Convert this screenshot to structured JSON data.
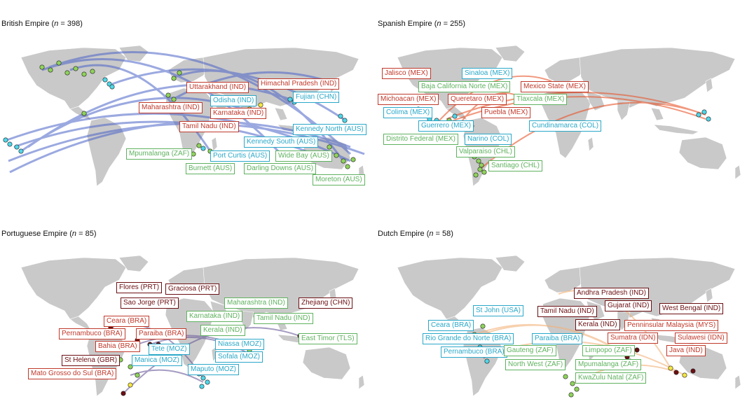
{
  "colors": {
    "land": "#c9c9c9",
    "border": "#ffffff",
    "red": "#c0392b",
    "dark_red": "#6b0f12",
    "blue": "#2aa8c8",
    "green": "#5fb25f",
    "british_route": "#4a63c8",
    "spanish_route": "#e8542a",
    "portuguese_route": "#6a5a9a",
    "dutch_route": "#f2b27a",
    "point_green": "#8fd35a",
    "point_blue": "#4fd6e8",
    "point_yellow": "#f5e642",
    "point_dark": "#6b0f12"
  },
  "panels": [
    {
      "id": "british",
      "title_name": "British Empire",
      "n": "398",
      "route_color_key": "british_route",
      "labels": [
        {
          "text": "Uttarakhand (IND)",
          "color": "red"
        },
        {
          "text": "Himachal Pradesh (IND)",
          "color": "red"
        },
        {
          "text": "Odisha (IND)",
          "color": "blue"
        },
        {
          "text": "Fujian (CHN)",
          "color": "blue"
        },
        {
          "text": "Maharashtra (IND)",
          "color": "red"
        },
        {
          "text": "Karnataka (IND)",
          "color": "red"
        },
        {
          "text": "Tamil Nadu (IND)",
          "color": "red"
        },
        {
          "text": "Kennedy North (AUS)",
          "color": "blue"
        },
        {
          "text": "Kennedy South (AUS)",
          "color": "blue"
        },
        {
          "text": "Mpumalanga (ZAF)",
          "color": "green"
        },
        {
          "text": "Port Curtis (AUS)",
          "color": "blue"
        },
        {
          "text": "Wide Bay (AUS)",
          "color": "green"
        },
        {
          "text": "Burnett (AUS)",
          "color": "green"
        },
        {
          "text": "Darling Downs (AUS)",
          "color": "green"
        },
        {
          "text": "Moreton (AUS)",
          "color": "green"
        }
      ]
    },
    {
      "id": "spanish",
      "title_name": "Spanish Empire",
      "n": "255",
      "route_color_key": "spanish_route",
      "labels": [
        {
          "text": "Jalisco (MEX)",
          "color": "red"
        },
        {
          "text": "Sinaloa (MEX)",
          "color": "blue"
        },
        {
          "text": "Baja California Norte (MEX)",
          "color": "green"
        },
        {
          "text": "Mexico State (MEX)",
          "color": "red"
        },
        {
          "text": "Michoacan (MEX)",
          "color": "red"
        },
        {
          "text": "Queretaro (MEX)",
          "color": "red"
        },
        {
          "text": "Tlaxcala (MEX)",
          "color": "green"
        },
        {
          "text": "Colima (MEX)",
          "color": "blue"
        },
        {
          "text": "Puebla (MEX)",
          "color": "red"
        },
        {
          "text": "Guerrero (MEX)",
          "color": "blue"
        },
        {
          "text": "Cundinamarca (COL)",
          "color": "blue"
        },
        {
          "text": "Distrito Federal (MEX)",
          "color": "green"
        },
        {
          "text": "Narino (COL)",
          "color": "blue"
        },
        {
          "text": "Valparaiso (CHL)",
          "color": "green"
        },
        {
          "text": "Santiago (CHL)",
          "color": "green"
        }
      ]
    },
    {
      "id": "portuguese",
      "title_name": "Portuguese Empire",
      "n": "85",
      "route_color_key": "portuguese_route",
      "labels": [
        {
          "text": "Flores (PRT)",
          "color": "dark_red"
        },
        {
          "text": "Graciosa (PRT)",
          "color": "dark_red"
        },
        {
          "text": "Sao Jorge (PRT)",
          "color": "dark_red"
        },
        {
          "text": "Maharashtra (IND)",
          "color": "green"
        },
        {
          "text": "Zhejiang (CHN)",
          "color": "dark_red"
        },
        {
          "text": "Karnataka (IND)",
          "color": "green"
        },
        {
          "text": "Tamil Nadu (IND)",
          "color": "green"
        },
        {
          "text": "Ceara (BRA)",
          "color": "red"
        },
        {
          "text": "Kerala (IND)",
          "color": "green"
        },
        {
          "text": "Pernambuco (BRA)",
          "color": "red"
        },
        {
          "text": "Paraiba (BRA)",
          "color": "red"
        },
        {
          "text": "East Timor (TLS)",
          "color": "green"
        },
        {
          "text": "Bahia (BRA)",
          "color": "red"
        },
        {
          "text": "Tete (MOZ)",
          "color": "blue"
        },
        {
          "text": "Niassa (MOZ)",
          "color": "blue"
        },
        {
          "text": "St Helena (GBR)",
          "color": "dark_red"
        },
        {
          "text": "Manica (MOZ)",
          "color": "blue"
        },
        {
          "text": "Sofala (MOZ)",
          "color": "blue"
        },
        {
          "text": "Maputo (MOZ)",
          "color": "blue"
        },
        {
          "text": "Mato Grosso do Sul (BRA)",
          "color": "red"
        }
      ]
    },
    {
      "id": "dutch",
      "title_name": "Dutch Empire",
      "n": "58",
      "route_color_key": "dutch_route",
      "labels": [
        {
          "text": "Andhra Pradesh (IND)",
          "color": "dark_red"
        },
        {
          "text": "Gujarat (IND)",
          "color": "dark_red"
        },
        {
          "text": "West Bengal (IND)",
          "color": "dark_red"
        },
        {
          "text": "Tamil Nadu (IND)",
          "color": "dark_red"
        },
        {
          "text": "St John (USA)",
          "color": "blue"
        },
        {
          "text": "Kerala (IND)",
          "color": "dark_red"
        },
        {
          "text": "Penninsular Malaysia (MYS)",
          "color": "red"
        },
        {
          "text": "Ceara (BRA)",
          "color": "blue"
        },
        {
          "text": "Sumatra (IDN)",
          "color": "red"
        },
        {
          "text": "Sulawesi (IDN)",
          "color": "red"
        },
        {
          "text": "Rio Grande do Norte (BRA)",
          "color": "blue"
        },
        {
          "text": "Paraiba (BRA)",
          "color": "blue"
        },
        {
          "text": "Java (IND)",
          "color": "red"
        },
        {
          "text": "Pernambuco (BRA)",
          "color": "blue"
        },
        {
          "text": "Gauteng (ZAF)",
          "color": "green"
        },
        {
          "text": "Limpopo (ZAF)",
          "color": "green"
        },
        {
          "text": "North West (ZAF)",
          "color": "green"
        },
        {
          "text": "Mpumalanga (ZAF)",
          "color": "green"
        },
        {
          "text": "KwaZulu Natal (ZAF)",
          "color": "green"
        }
      ]
    }
  ]
}
